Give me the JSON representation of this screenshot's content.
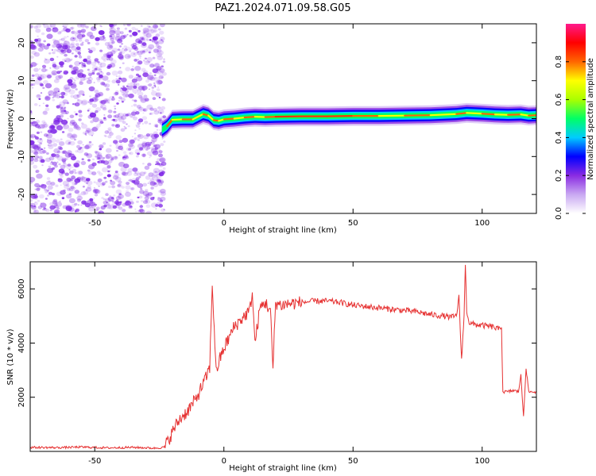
{
  "title": "PAZ1.2024.071.09.58.G05",
  "chart_data": [
    {
      "type": "heatmap",
      "xlabel": "Height of straight line (km)",
      "ylabel": "Frequency (Hz)",
      "xlim": [
        -75,
        121
      ],
      "ylim": [
        -25,
        25
      ],
      "x_ticks": [
        -50,
        0,
        50,
        100
      ],
      "y_ticks": [
        -20,
        -10,
        0,
        10,
        20
      ],
      "noise_region_x": [
        -75,
        -23
      ],
      "noise_color": "#7a1fe6",
      "ridge": {
        "x": [
          -24,
          -22,
          -20,
          -16,
          -12,
          -8,
          -6,
          -4,
          -2,
          0,
          4,
          8,
          12,
          16,
          20,
          30,
          40,
          50,
          60,
          70,
          80,
          90,
          94,
          100,
          105,
          110,
          115,
          118,
          121
        ],
        "freq": [
          -3,
          -2,
          -0.3,
          -0.2,
          -0.2,
          1.2,
          0.8,
          -0.4,
          -0.6,
          -0.2,
          0,
          0.3,
          0.5,
          0.4,
          0.5,
          0.6,
          0.6,
          0.7,
          0.7,
          0.8,
          0.9,
          1.2,
          1.5,
          1.3,
          1.1,
          1,
          1.1,
          0.8,
          0.9
        ]
      },
      "colorbar": {
        "label": "Normalized spectral amplitude",
        "ticks": [
          "0.0",
          "0.2",
          "0.4",
          "0.6",
          "0.8"
        ],
        "tick_values": [
          0,
          0.2,
          0.4,
          0.6,
          0.8
        ],
        "range": [
          0,
          1
        ],
        "colors": [
          "#ffffff",
          "#c9a8f2",
          "#8a2be2",
          "#0000ff",
          "#00ccff",
          "#00ff66",
          "#aaff00",
          "#ffff00",
          "#ff6600",
          "#ff0000",
          "#ff1a8c"
        ]
      }
    },
    {
      "type": "line",
      "xlabel": "Height of straight line (km)",
      "ylabel": "SNR (10 * v/v)",
      "xlim": [
        -75,
        121
      ],
      "ylim": [
        0,
        7000
      ],
      "x_ticks": [
        -50,
        0,
        50,
        100
      ],
      "y_ticks": [
        2000,
        4000,
        6000
      ],
      "series": [
        {
          "color": "#e63232",
          "x": [
            -75,
            -65,
            -55,
            -45,
            -35,
            -27,
            -23,
            -21,
            -19,
            -17,
            -14,
            -11,
            -9,
            -7,
            -5.5,
            -4.5,
            -3,
            -2,
            0,
            2,
            4,
            6,
            8,
            10,
            11,
            12,
            14,
            16,
            18,
            19,
            20,
            22,
            25,
            30,
            35,
            40,
            45,
            50,
            55,
            60,
            65,
            70,
            75,
            80,
            85,
            88,
            90,
            91,
            92,
            93,
            93.5,
            94,
            95,
            96,
            100,
            104,
            106.5,
            107.5,
            108,
            110,
            112,
            114,
            115,
            116,
            117,
            118,
            121
          ],
          "y": [
            150,
            140,
            160,
            130,
            150,
            120,
            150,
            500,
            900,
            1200,
            1500,
            1900,
            2300,
            2700,
            3100,
            6200,
            2900,
            3300,
            3800,
            4200,
            4600,
            4800,
            5000,
            5200,
            5900,
            4000,
            5300,
            5500,
            5200,
            3000,
            5500,
            5400,
            5450,
            5500,
            5550,
            5550,
            5500,
            5400,
            5350,
            5300,
            5250,
            5200,
            5150,
            5050,
            5000,
            4950,
            5000,
            5700,
            3400,
            5000,
            6950,
            5200,
            4750,
            4700,
            4650,
            4600,
            4500,
            4600,
            2200,
            2200,
            2250,
            2200,
            2800,
            1300,
            3100,
            2200,
            2200
          ]
        }
      ]
    }
  ]
}
